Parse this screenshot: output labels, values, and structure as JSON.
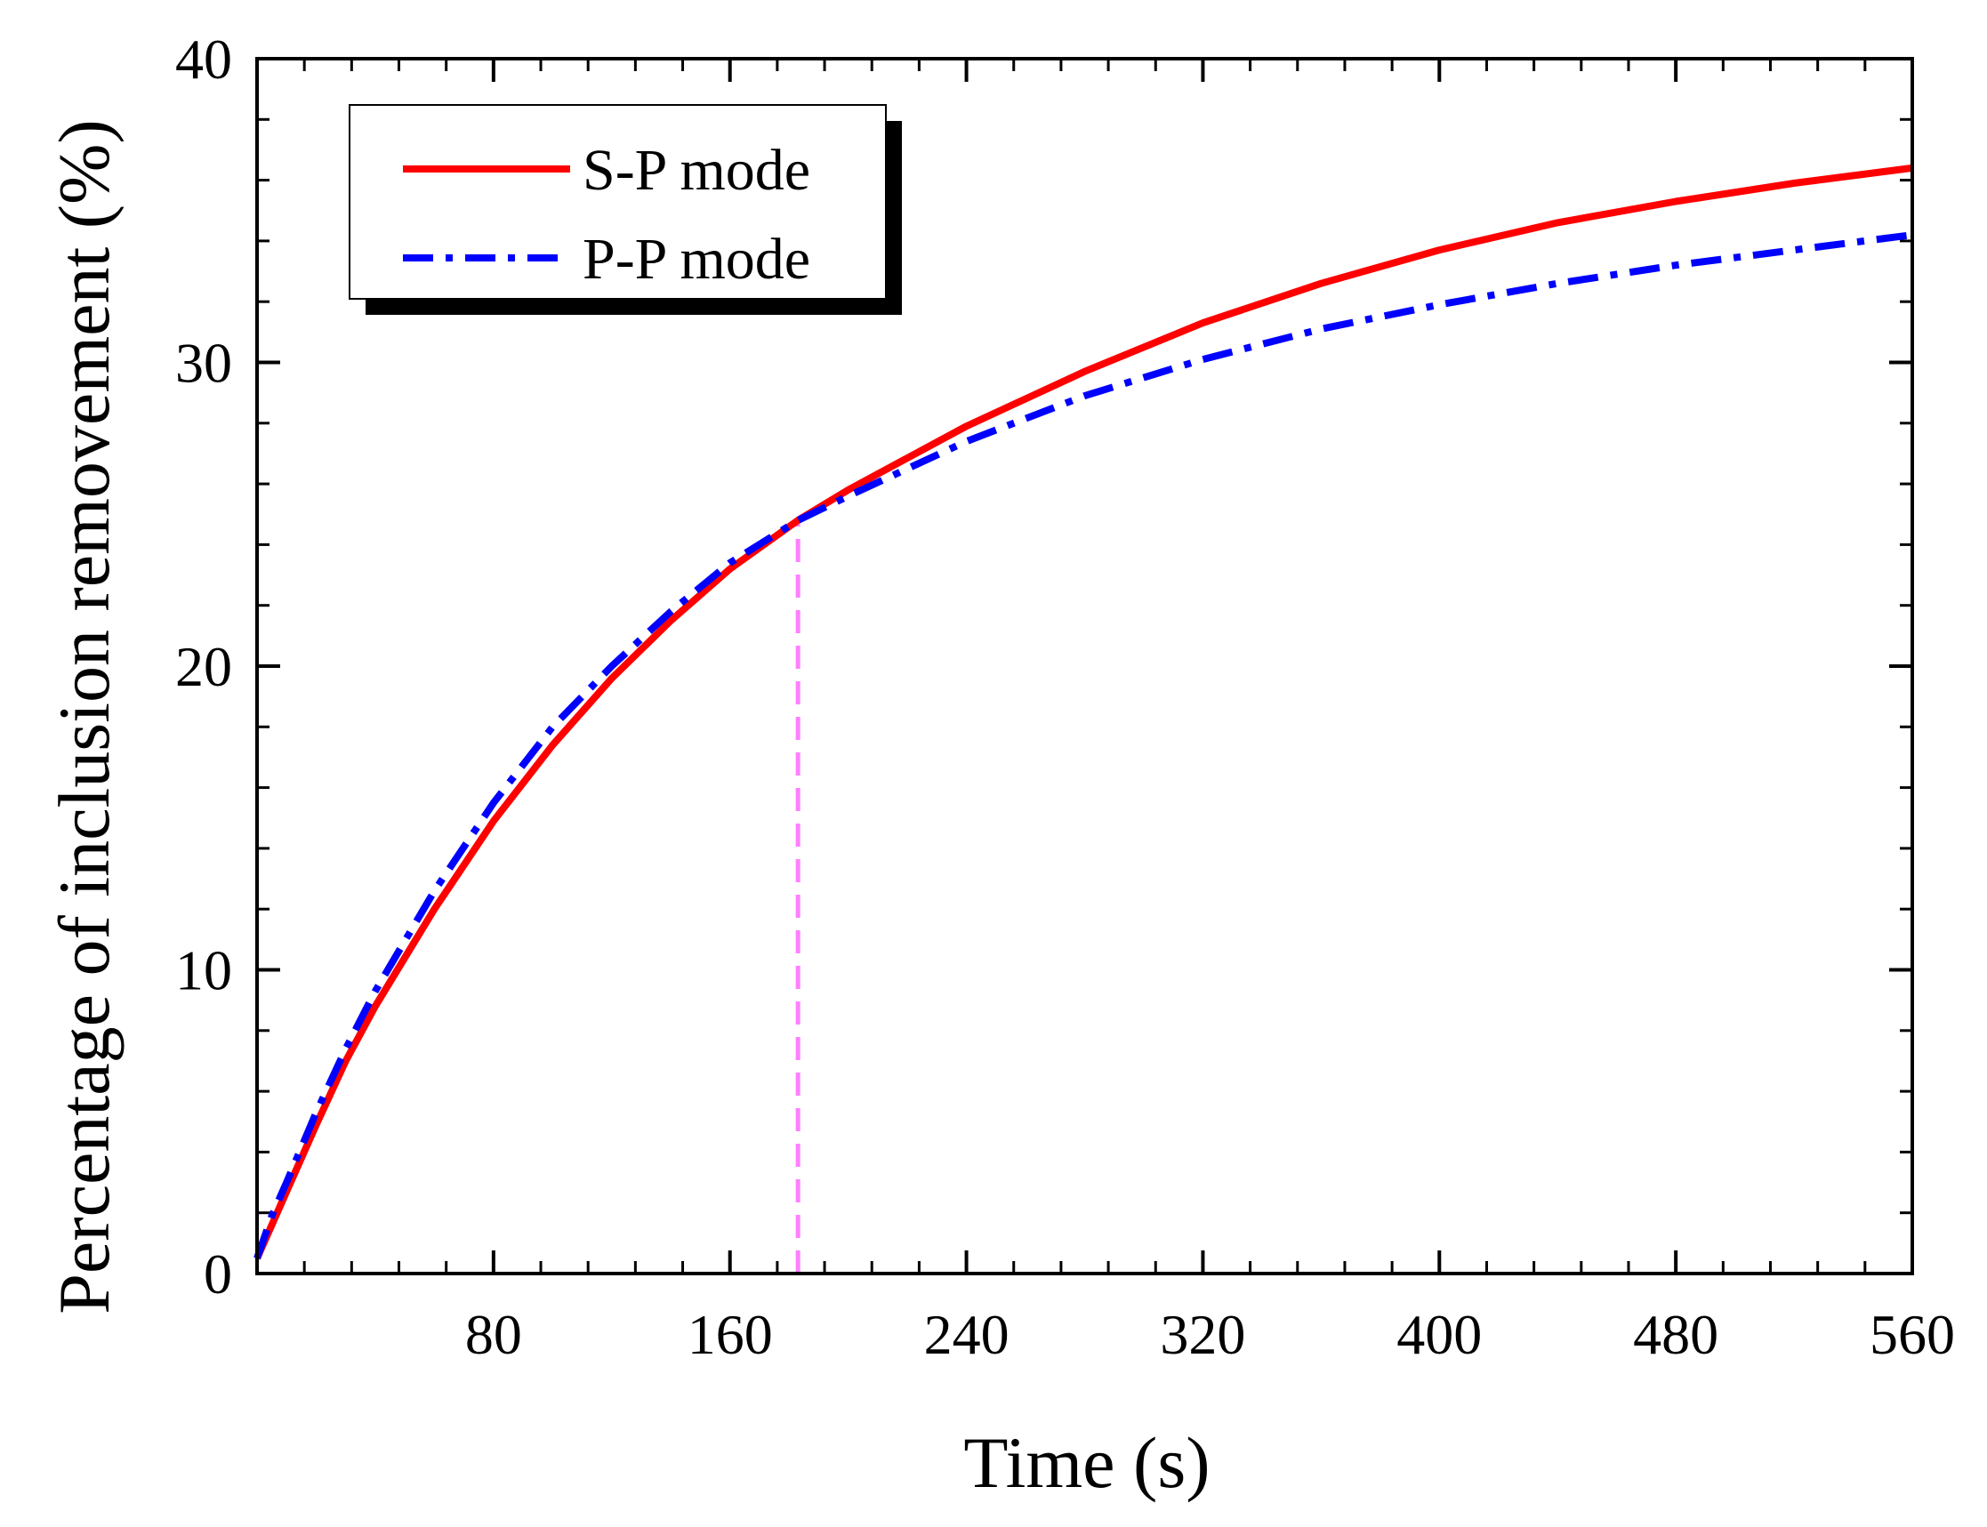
{
  "chart_data": {
    "type": "line",
    "title": "",
    "xlabel": "Time (s)",
    "ylabel": "Percentage of inclusion removement (%)",
    "xlim": [
      0,
      560
    ],
    "ylim": [
      0,
      40
    ],
    "x_ticks": [
      80,
      160,
      240,
      320,
      400,
      480,
      560
    ],
    "x_minor_step": 16,
    "y_ticks": [
      0,
      10,
      20,
      30,
      40
    ],
    "y_minor_step": 2,
    "grid": false,
    "legend_position": "top-left",
    "series": [
      {
        "name": "S-P mode",
        "color": "#ff0000",
        "style": "solid",
        "x": [
          0,
          5,
          10,
          20,
          30,
          40,
          60,
          80,
          100,
          120,
          140,
          160,
          183,
          200,
          240,
          280,
          320,
          360,
          400,
          440,
          480,
          520,
          560
        ],
        "y": [
          0.5,
          1.6,
          2.7,
          4.9,
          7.0,
          8.8,
          12.0,
          14.9,
          17.4,
          19.6,
          21.5,
          23.2,
          24.8,
          25.8,
          27.9,
          29.7,
          31.3,
          32.6,
          33.7,
          34.6,
          35.3,
          35.9,
          36.4
        ]
      },
      {
        "name": "P-P mode",
        "color": "#0000ff",
        "style": "dash-dot",
        "x": [
          0,
          5,
          10,
          20,
          30,
          40,
          60,
          80,
          100,
          120,
          140,
          160,
          183,
          200,
          240,
          280,
          320,
          360,
          400,
          440,
          480,
          520,
          560
        ],
        "y": [
          0.5,
          1.9,
          3.0,
          5.3,
          7.4,
          9.3,
          12.6,
          15.5,
          18.0,
          20.0,
          21.8,
          23.4,
          24.8,
          25.6,
          27.4,
          28.9,
          30.1,
          31.1,
          31.9,
          32.6,
          33.2,
          33.7,
          34.2
        ]
      }
    ],
    "annotations": [
      {
        "type": "vertical-dashed-line",
        "color": "#ff80ff",
        "x": 183,
        "y_from": 0,
        "y_to": 24.8
      }
    ]
  }
}
